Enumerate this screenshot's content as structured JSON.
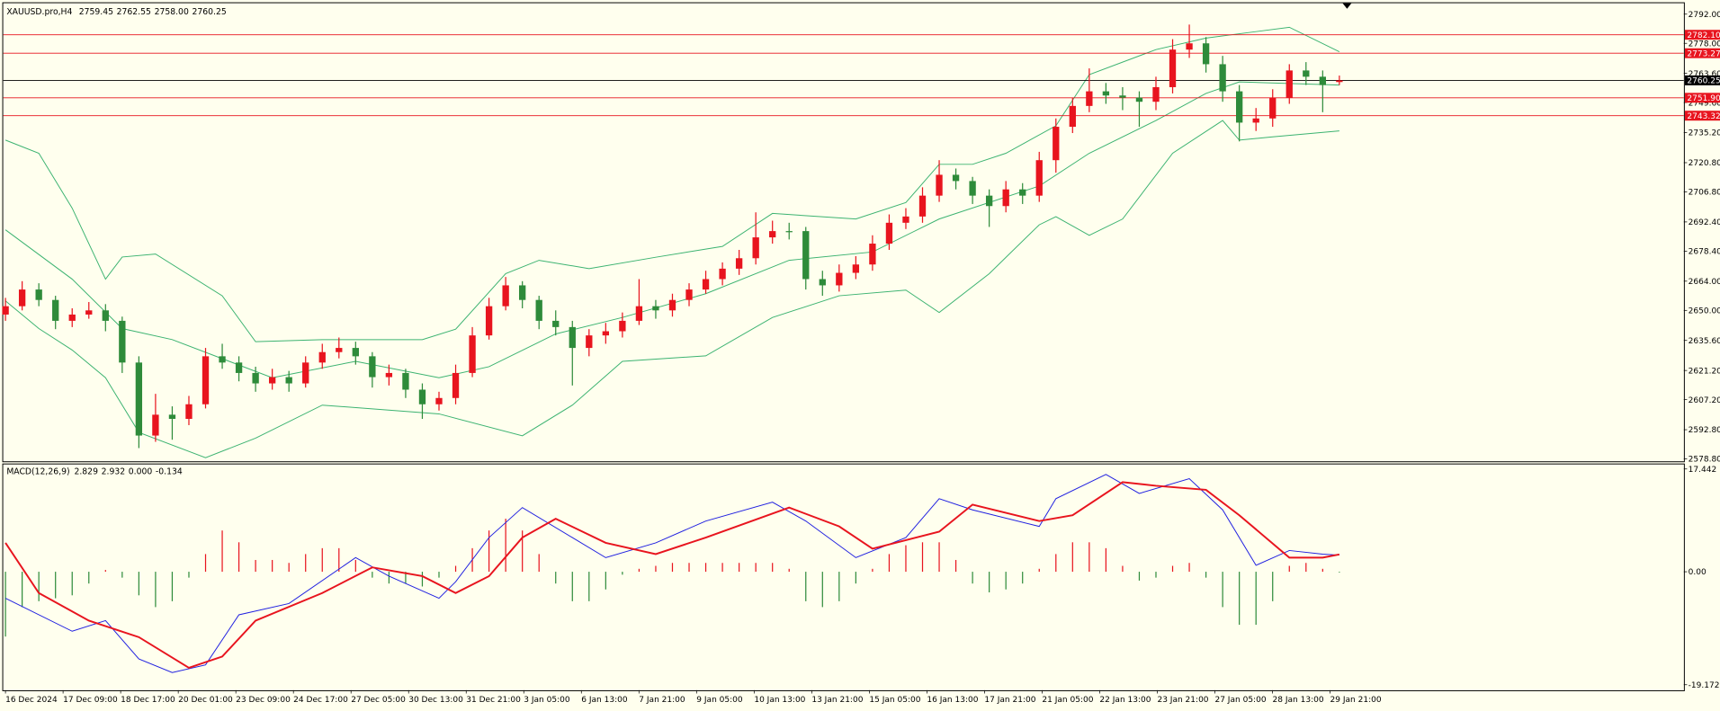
{
  "chart_data": [
    {
      "type": "candlestick",
      "symbol": "XAUUSD.pro,H4",
      "ohlc": [
        "2759.45",
        "2762.55",
        "2758.00",
        "2760.25"
      ],
      "up_color": "#e8141e",
      "down_color": "#2e8b3a",
      "ylim": [
        2577.7,
        2797.2
      ],
      "yticks": [
        {
          "value": 2792,
          "label": "2792.00"
        },
        {
          "value": 2778,
          "label": "2778.00"
        },
        {
          "value": 2763.6,
          "label": "2763.60"
        },
        {
          "value": 2749.6,
          "label": "2749.60"
        },
        {
          "value": 2735.2,
          "label": "2735.20"
        },
        {
          "value": 2720.8,
          "label": "2720.80"
        },
        {
          "value": 2706.8,
          "label": "2706.80"
        },
        {
          "value": 2692.4,
          "label": "2692.40"
        },
        {
          "value": 2678.4,
          "label": "2678.40"
        },
        {
          "value": 2664,
          "label": "2664.00"
        },
        {
          "value": 2650,
          "label": "2650.00"
        },
        {
          "value": 2635.6,
          "label": "2635.60"
        },
        {
          "value": 2621.2,
          "label": "2621.20"
        },
        {
          "value": 2607.2,
          "label": "2607.20"
        },
        {
          "value": 2592.8,
          "label": "2592.80"
        },
        {
          "value": 2578.8,
          "label": "2578.80"
        }
      ],
      "levels": [
        {
          "value": 2782.1,
          "label": "2782.10",
          "color": "#e8141e"
        },
        {
          "value": 2773.27,
          "color": "#e8141e"
        },
        {
          "value": 2760.25,
          "color": "#000000"
        },
        {
          "value": 2751.9,
          "label": "2751.90",
          "color": "#e8141e"
        },
        {
          "value": 2743.32,
          "color": "#e8141e"
        }
      ],
      "candles": [
        [
          2648,
          2656,
          2645,
          2652
        ],
        [
          2652,
          2664,
          2650,
          2660
        ],
        [
          2660,
          2663,
          2652,
          2655
        ],
        [
          2655,
          2657,
          2641,
          2645
        ],
        [
          2645,
          2651,
          2642,
          2648
        ],
        [
          2648,
          2654,
          2646,
          2650
        ],
        [
          2650,
          2653,
          2640,
          2645
        ],
        [
          2645,
          2647,
          2620,
          2625
        ],
        [
          2625,
          2628,
          2584,
          2590
        ],
        [
          2590,
          2610,
          2587,
          2600
        ],
        [
          2600,
          2604,
          2588,
          2598
        ],
        [
          2598,
          2609,
          2595,
          2605
        ],
        [
          2605,
          2632,
          2603,
          2628
        ],
        [
          2628,
          2634,
          2622,
          2625
        ],
        [
          2625,
          2628,
          2616,
          2620
        ],
        [
          2620,
          2623,
          2611,
          2615
        ],
        [
          2615,
          2622,
          2612,
          2618
        ],
        [
          2618,
          2621,
          2611,
          2615
        ],
        [
          2615,
          2628,
          2613,
          2625
        ],
        [
          2625,
          2634,
          2622,
          2630
        ],
        [
          2630,
          2637,
          2627,
          2632
        ],
        [
          2632,
          2635,
          2624,
          2628
        ],
        [
          2628,
          2630,
          2613,
          2618
        ],
        [
          2618,
          2624,
          2614,
          2620
        ],
        [
          2620,
          2622,
          2608,
          2612
        ],
        [
          2612,
          2615,
          2598,
          2605
        ],
        [
          2605,
          2611,
          2602,
          2608
        ],
        [
          2608,
          2624,
          2605,
          2620
        ],
        [
          2620,
          2642,
          2618,
          2638
        ],
        [
          2638,
          2656,
          2636,
          2652
        ],
        [
          2652,
          2666,
          2650,
          2662
        ],
        [
          2662,
          2664,
          2651,
          2655
        ],
        [
          2655,
          2657,
          2641,
          2645
        ],
        [
          2645,
          2650,
          2638,
          2642
        ],
        [
          2642,
          2645,
          2614,
          2632
        ],
        [
          2632,
          2641,
          2628,
          2638
        ],
        [
          2638,
          2644,
          2634,
          2640
        ],
        [
          2640,
          2649,
          2637,
          2645
        ],
        [
          2645,
          2665,
          2643,
          2652
        ],
        [
          2652,
          2655,
          2646,
          2650
        ],
        [
          2650,
          2658,
          2647,
          2655
        ],
        [
          2655,
          2663,
          2652,
          2660
        ],
        [
          2660,
          2669,
          2658,
          2665
        ],
        [
          2665,
          2673,
          2662,
          2670
        ],
        [
          2670,
          2679,
          2667,
          2675
        ],
        [
          2675,
          2697,
          2672,
          2685
        ],
        [
          2685,
          2693,
          2682,
          2688
        ],
        [
          2688,
          2692,
          2684,
          2688
        ],
        [
          2688,
          2690,
          2660,
          2665
        ],
        [
          2665,
          2669,
          2657,
          2662
        ],
        [
          2662,
          2672,
          2659,
          2668
        ],
        [
          2668,
          2676,
          2665,
          2672
        ],
        [
          2672,
          2686,
          2669,
          2682
        ],
        [
          2682,
          2696,
          2679,
          2692
        ],
        [
          2692,
          2699,
          2689,
          2695
        ],
        [
          2695,
          2709,
          2692,
          2705
        ],
        [
          2705,
          2722,
          2702,
          2715
        ],
        [
          2715,
          2718,
          2708,
          2712
        ],
        [
          2712,
          2714,
          2701,
          2705
        ],
        [
          2705,
          2708,
          2690,
          2700
        ],
        [
          2700,
          2712,
          2697,
          2708
        ],
        [
          2708,
          2711,
          2701,
          2705
        ],
        [
          2705,
          2726,
          2702,
          2722
        ],
        [
          2722,
          2742,
          2716,
          2738
        ],
        [
          2738,
          2752,
          2735,
          2748
        ],
        [
          2748,
          2766,
          2745,
          2755
        ],
        [
          2755,
          2759,
          2749,
          2753
        ],
        [
          2753,
          2757,
          2746,
          2752
        ],
        [
          2752,
          2755,
          2738,
          2750
        ],
        [
          2750,
          2762,
          2746,
          2757
        ],
        [
          2757,
          2780,
          2754,
          2775
        ],
        [
          2775,
          2787,
          2771,
          2778
        ],
        [
          2778,
          2781,
          2764,
          2768
        ],
        [
          2768,
          2772,
          2750,
          2755
        ],
        [
          2755,
          2758,
          2731,
          2740
        ],
        [
          2740,
          2747,
          2736,
          2742
        ],
        [
          2742,
          2756,
          2738,
          2752
        ],
        [
          2752,
          2768,
          2749,
          2765
        ],
        [
          2765,
          2769,
          2758,
          2762
        ],
        [
          2762,
          2765,
          2745,
          2758
        ],
        [
          2759.45,
          2762.55,
          2758,
          2760.25
        ]
      ],
      "series": [
        {
          "color": "#3cb371",
          "x": [
            0,
            2,
            4,
            6,
            7,
            9,
            13,
            15,
            19,
            25,
            27,
            30,
            32,
            35,
            39,
            43,
            46,
            51,
            54,
            56,
            58,
            60,
            63,
            65,
            69,
            72,
            77,
            80
          ],
          "values": [
            2731.6,
            2725.3,
            2699,
            2665,
            2675.6,
            2677,
            2657,
            2635,
            2636,
            2636,
            2641,
            2667.6,
            2674,
            2670,
            2675.5,
            2680.7,
            2696.5,
            2693.8,
            2701.7,
            2720,
            2720,
            2725.3,
            2738.5,
            2763,
            2775,
            2780.5,
            2785.7,
            2774
          ]
        },
        {
          "color": "#3cb371",
          "x": [
            0,
            4,
            7,
            10,
            16,
            21,
            26,
            29,
            33,
            37,
            42,
            47,
            52,
            56,
            62,
            65,
            69,
            72,
            74,
            80
          ],
          "values": [
            2688.6,
            2665,
            2641.3,
            2636,
            2617.7,
            2625.6,
            2617.7,
            2623,
            2638.7,
            2646.6,
            2658,
            2674,
            2678,
            2693.8,
            2709.6,
            2725.3,
            2741,
            2754,
            2759.5,
            2758
          ]
        },
        {
          "color": "#3cb371",
          "x": [
            0,
            2,
            4,
            6,
            8,
            12,
            15,
            19,
            26,
            31,
            34,
            37,
            42,
            46,
            50,
            54,
            56,
            59,
            62,
            63,
            65,
            67,
            70,
            73,
            74,
            76,
            80
          ],
          "values": [
            2654.5,
            2641.3,
            2631,
            2617.7,
            2591.5,
            2579.4,
            2588.8,
            2604.6,
            2600.4,
            2589.9,
            2604.6,
            2625.6,
            2628.2,
            2646.6,
            2657,
            2659.7,
            2649,
            2667.6,
            2691,
            2694.9,
            2686,
            2693.8,
            2725.3,
            2741,
            2731.6,
            2733.2,
            2736
          ]
        }
      ]
    },
    {
      "type": "macd",
      "title": "MACD(12,26,9)",
      "readings": [
        "2.829",
        "2.932",
        "0.000",
        "-0.134"
      ],
      "ylim": [
        -20.1,
        18.2
      ],
      "yticks": [
        17.442,
        {
          "value": 0,
          "label": "0.00"
        },
        -19.172
      ],
      "up_color": "#e8141e",
      "down_color": "#2e8b3a",
      "values": [
        -11,
        -6,
        -5,
        -4.5,
        -4,
        -2,
        0.3,
        -1,
        -4,
        -6,
        -5,
        -1,
        3,
        7,
        5,
        2,
        2,
        1.5,
        3,
        4,
        4,
        2,
        -1,
        -2,
        -2,
        -2.5,
        -1,
        1,
        4,
        7,
        9,
        7,
        3,
        -2,
        -5,
        -5,
        -3,
        -0.5,
        0.5,
        1,
        1.5,
        1.5,
        1.5,
        1.5,
        1.5,
        1.5,
        1.5,
        0.5,
        -5,
        -6,
        -5,
        -2,
        0.5,
        3,
        4.5,
        5,
        5,
        2,
        -2,
        -3.5,
        -3,
        -2,
        0.5,
        3,
        5,
        5,
        4,
        1,
        -1.5,
        -1,
        1,
        1.5,
        -1,
        -6,
        -9,
        -9,
        -5,
        1,
        1.5,
        0.5,
        -0.134
      ],
      "series": [
        {
          "color": "#2020e0",
          "x": [
            0,
            4,
            6,
            8,
            10,
            12,
            14,
            17,
            21,
            23,
            26,
            27,
            29,
            31,
            34,
            36,
            39,
            42,
            46,
            48,
            51,
            54,
            56,
            58,
            62,
            63,
            66,
            68,
            71,
            73,
            75,
            77,
            79,
            80
          ],
          "values": [
            -4.5,
            -10.1,
            -8.3,
            -14.8,
            -17.1,
            -15.8,
            -7.3,
            -5.4,
            2.4,
            -0.75,
            -4.5,
            -1.7,
            5.8,
            10.9,
            5.8,
            2.4,
            4.9,
            8.6,
            11.8,
            8.6,
            2.4,
            5.8,
            12.4,
            10.5,
            7.7,
            12.4,
            16.5,
            13.3,
            15.8,
            10.5,
            1.1,
            3.6,
            3.0,
            2.829
          ]
        },
        {
          "color": "#e8141e",
          "x": [
            0,
            2,
            5,
            8,
            11,
            13,
            15,
            19,
            22,
            25,
            27,
            29,
            31,
            33,
            36,
            39,
            42,
            47,
            50,
            52,
            56,
            58,
            62,
            64,
            67,
            69,
            72,
            74,
            77,
            79,
            80
          ],
          "values": [
            4.9,
            -3.6,
            -8.3,
            -11.1,
            -16.3,
            -14.4,
            -8.3,
            -3.6,
            0.75,
            -0.75,
            -3.6,
            -0.75,
            5.8,
            9,
            4.9,
            3,
            5.8,
            10.9,
            7.7,
            3.9,
            6.8,
            11.4,
            8.6,
            9.6,
            15.2,
            14.6,
            13.9,
            9.6,
            2.4,
            2.4,
            2.932
          ]
        }
      ],
      "x_labels": [
        "16 Dec 2024",
        "17 Dec 09:00",
        "18 Dec 17:00",
        "20 Dec 01:00",
        "23 Dec 09:00",
        "24 Dec 17:00",
        "27 Dec 05:00",
        "30 Dec 13:00",
        "31 Dec 21:00",
        "3 Jan 05:00",
        "6 Jan 13:00",
        "7 Jan 21:00",
        "9 Jan 05:00",
        "10 Jan 13:00",
        "13 Jan 21:00",
        "15 Jan 05:00",
        "16 Jan 13:00",
        "17 Jan 21:00",
        "21 Jan 05:00",
        "22 Jan 13:00",
        "23 Jan 21:00",
        "27 Jan 05:00",
        "28 Jan 13:00",
        "29 Jan 21:00"
      ]
    }
  ]
}
